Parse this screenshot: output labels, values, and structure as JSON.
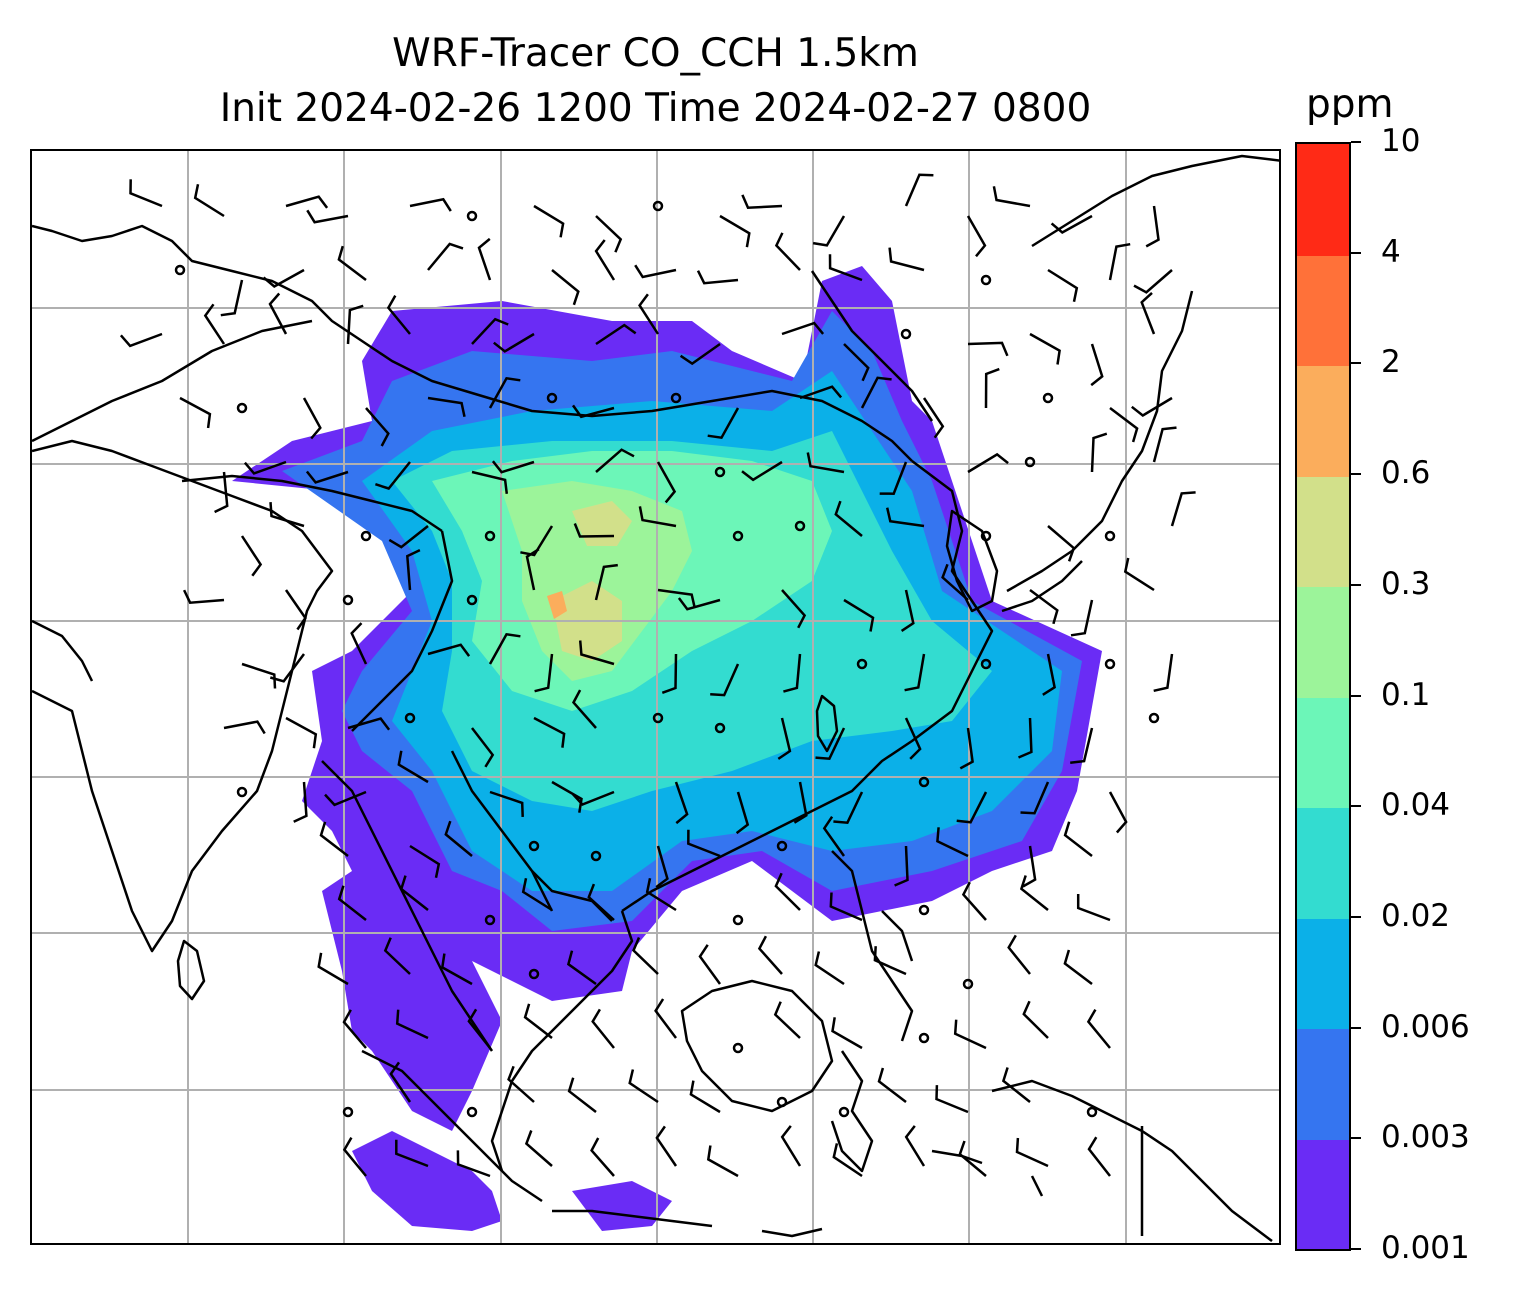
{
  "title": {
    "line1": "WRF-Tracer CO_CCH 1.5km",
    "line2": "Init 2024-02-26 1200 Time 2024-02-27 0800"
  },
  "colorbar": {
    "unit": "ppm",
    "levels": [
      "0.001",
      "0.003",
      "0.006",
      "0.02",
      "0.04",
      "0.1",
      "0.3",
      "0.6",
      "2",
      "4",
      "10"
    ],
    "colors": [
      "#6a2cf5",
      "#3575f0",
      "#0bb0e8",
      "#33dcd0",
      "#6cf6b8",
      "#9cf49a",
      "#d2e08a",
      "#fbad5c",
      "#ff7139",
      "#ff2a16"
    ]
  },
  "map": {
    "region": "Asia (India, China, Southeast Asia, Korea, Japan, Indonesia)",
    "gridlines": true,
    "layers": [
      "CO tracer concentration (filled contours)",
      "coastlines and borders",
      "wind barbs",
      "calm-wind circles"
    ]
  }
}
